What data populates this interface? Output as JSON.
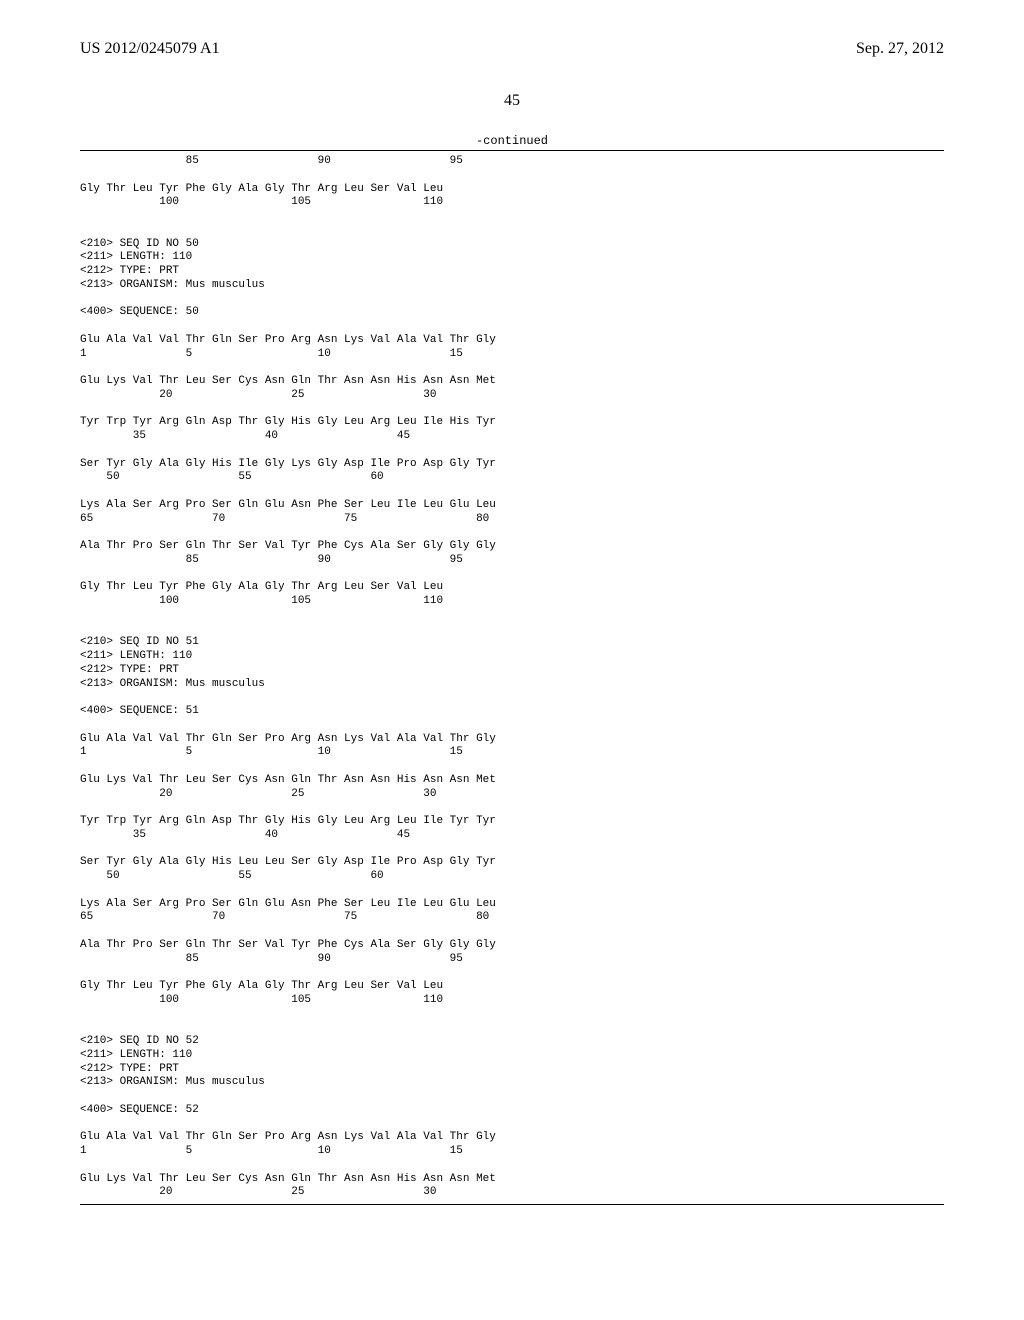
{
  "header": {
    "publication_id": "US 2012/0245079 A1",
    "publication_date": "Sep. 27, 2012"
  },
  "page_number": "45",
  "continued_label": "-continued",
  "seq_font": {
    "family": "Courier New",
    "size_pt": 11,
    "line_height": 1.25,
    "color": "#000000"
  },
  "rule_color": "#000000",
  "background_color": "#ffffff",
  "sequence_text": "                85                  90                  95\n\nGly Thr Leu Tyr Phe Gly Ala Gly Thr Arg Leu Ser Val Leu\n            100                 105                 110\n\n\n<210> SEQ ID NO 50\n<211> LENGTH: 110\n<212> TYPE: PRT\n<213> ORGANISM: Mus musculus\n\n<400> SEQUENCE: 50\n\nGlu Ala Val Val Thr Gln Ser Pro Arg Asn Lys Val Ala Val Thr Gly\n1               5                   10                  15\n\nGlu Lys Val Thr Leu Ser Cys Asn Gln Thr Asn Asn His Asn Asn Met\n            20                  25                  30\n\nTyr Trp Tyr Arg Gln Asp Thr Gly His Gly Leu Arg Leu Ile His Tyr\n        35                  40                  45\n\nSer Tyr Gly Ala Gly His Ile Gly Lys Gly Asp Ile Pro Asp Gly Tyr\n    50                  55                  60\n\nLys Ala Ser Arg Pro Ser Gln Glu Asn Phe Ser Leu Ile Leu Glu Leu\n65                  70                  75                  80\n\nAla Thr Pro Ser Gln Thr Ser Val Tyr Phe Cys Ala Ser Gly Gly Gly\n                85                  90                  95\n\nGly Thr Leu Tyr Phe Gly Ala Gly Thr Arg Leu Ser Val Leu\n            100                 105                 110\n\n\n<210> SEQ ID NO 51\n<211> LENGTH: 110\n<212> TYPE: PRT\n<213> ORGANISM: Mus musculus\n\n<400> SEQUENCE: 51\n\nGlu Ala Val Val Thr Gln Ser Pro Arg Asn Lys Val Ala Val Thr Gly\n1               5                   10                  15\n\nGlu Lys Val Thr Leu Ser Cys Asn Gln Thr Asn Asn His Asn Asn Met\n            20                  25                  30\n\nTyr Trp Tyr Arg Gln Asp Thr Gly His Gly Leu Arg Leu Ile Tyr Tyr\n        35                  40                  45\n\nSer Tyr Gly Ala Gly His Leu Leu Ser Gly Asp Ile Pro Asp Gly Tyr\n    50                  55                  60\n\nLys Ala Ser Arg Pro Ser Gln Glu Asn Phe Ser Leu Ile Leu Glu Leu\n65                  70                  75                  80\n\nAla Thr Pro Ser Gln Thr Ser Val Tyr Phe Cys Ala Ser Gly Gly Gly\n                85                  90                  95\n\nGly Thr Leu Tyr Phe Gly Ala Gly Thr Arg Leu Ser Val Leu\n            100                 105                 110\n\n\n<210> SEQ ID NO 52\n<211> LENGTH: 110\n<212> TYPE: PRT\n<213> ORGANISM: Mus musculus\n\n<400> SEQUENCE: 52\n\nGlu Ala Val Val Thr Gln Ser Pro Arg Asn Lys Val Ala Val Thr Gly\n1               5                   10                  15\n\nGlu Lys Val Thr Leu Ser Cys Asn Gln Thr Asn Asn His Asn Asn Met\n            20                  25                  30"
}
